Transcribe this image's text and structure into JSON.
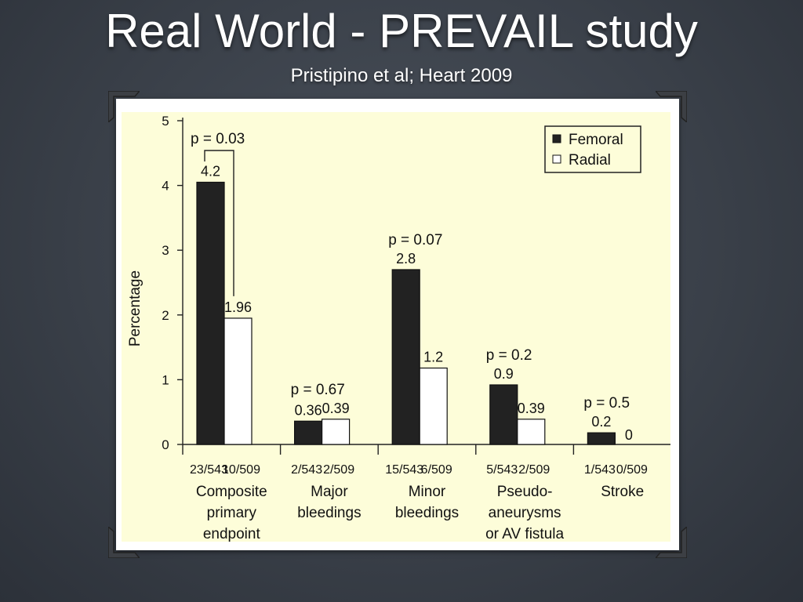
{
  "slide": {
    "title": "Real World - PREVAIL study",
    "subtitle": "Pristipino et al; Heart 2009"
  },
  "colors": {
    "background": "#3a4049",
    "panel": "#fdfdd9",
    "femoral": "#222222",
    "radial": "#ffffff"
  },
  "chart_data": {
    "type": "bar",
    "ylabel": "Percentage",
    "ylim": [
      0,
      5
    ],
    "yticks": [
      "0",
      "1",
      "2",
      "3",
      "4",
      "5"
    ],
    "legend": {
      "position": "top-right",
      "entries": [
        "Femoral",
        "Radial"
      ]
    },
    "categories": [
      {
        "label": [
          "Composite",
          "primary",
          "endpoint"
        ],
        "counts": [
          "23/543",
          "10/509"
        ],
        "p": "p = 0.03",
        "value_labels": [
          "4.2",
          "1.96"
        ]
      },
      {
        "label": [
          "Major",
          "bleedings"
        ],
        "counts": [
          "2/543",
          "2/509"
        ],
        "p": "p = 0.67",
        "value_labels": [
          "0.36",
          "0.39"
        ]
      },
      {
        "label": [
          "Minor",
          "bleedings"
        ],
        "counts": [
          "15/543",
          "6/509"
        ],
        "p": "p = 0.07",
        "value_labels": [
          "2.8",
          "1.2"
        ]
      },
      {
        "label": [
          "Pseudo-",
          "aneurysms",
          "or AV fistula"
        ],
        "counts": [
          "5/543",
          "2/509"
        ],
        "p": "p = 0.2",
        "value_labels": [
          "0.9",
          "0.39"
        ]
      },
      {
        "label": [
          "Stroke"
        ],
        "counts": [
          "1/543",
          "0/509"
        ],
        "p": "p = 0.5",
        "value_labels": [
          "0.2",
          "0"
        ]
      }
    ],
    "series": [
      {
        "name": "Femoral",
        "values": [
          4.05,
          0.36,
          2.7,
          0.92,
          0.18
        ]
      },
      {
        "name": "Radial",
        "values": [
          1.95,
          0.39,
          1.18,
          0.39,
          0
        ]
      }
    ]
  }
}
